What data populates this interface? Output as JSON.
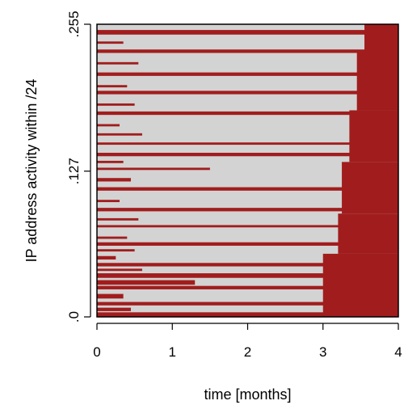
{
  "chart_data": {
    "type": "heatmap",
    "title": "",
    "xlabel": "time [months]",
    "ylabel": "IP address activity within /24",
    "xlim": [
      0,
      4
    ],
    "ylim": [
      0,
      255
    ],
    "x_ticks": [
      {
        "value": 0,
        "label": "0"
      },
      {
        "value": 1,
        "label": "1"
      },
      {
        "value": 2,
        "label": "2"
      },
      {
        "value": 3,
        "label": "3"
      },
      {
        "value": 4,
        "label": "4"
      }
    ],
    "y_ticks": [
      {
        "value": 0,
        "label": ".0"
      },
      {
        "value": 127,
        "label": ".127"
      },
      {
        "value": 255,
        "label": ".255"
      }
    ],
    "colors": {
      "active": "#a11d1d",
      "inactive": "#d3d3d3",
      "frame": "#000000"
    },
    "grid": false,
    "legend": "none",
    "series": [
      {
        "values": [
          {
            "ip_start": 0,
            "ip_end": 4,
            "time_start": 0.0,
            "time_end": 4.0
          },
          {
            "ip_start": 10,
            "ip_end": 13,
            "time_start": 0.0,
            "time_end": 4.0
          },
          {
            "ip_start": 24,
            "ip_end": 27,
            "time_start": 0.0,
            "time_end": 4.0
          },
          {
            "ip_start": 34,
            "ip_end": 38,
            "time_start": 0.0,
            "time_end": 4.0
          },
          {
            "ip_start": 44,
            "ip_end": 47,
            "time_start": 0.0,
            "time_end": 4.0
          },
          {
            "ip_start": 62,
            "ip_end": 65,
            "time_start": 0.0,
            "time_end": 4.0
          },
          {
            "ip_start": 78,
            "ip_end": 80,
            "time_start": 0.0,
            "time_end": 4.0
          },
          {
            "ip_start": 92,
            "ip_end": 95,
            "time_start": 0.0,
            "time_end": 4.0
          },
          {
            "ip_start": 110,
            "ip_end": 113,
            "time_start": 0.0,
            "time_end": 4.0
          },
          {
            "ip_start": 140,
            "ip_end": 143,
            "time_start": 0.0,
            "time_end": 4.0
          },
          {
            "ip_start": 150,
            "ip_end": 152,
            "time_start": 0.0,
            "time_end": 4.0
          },
          {
            "ip_start": 176,
            "ip_end": 179,
            "time_start": 0.0,
            "time_end": 4.0
          },
          {
            "ip_start": 194,
            "ip_end": 197,
            "time_start": 0.0,
            "time_end": 4.0
          },
          {
            "ip_start": 210,
            "ip_end": 213,
            "time_start": 0.0,
            "time_end": 4.0
          },
          {
            "ip_start": 230,
            "ip_end": 233,
            "time_start": 0.0,
            "time_end": 4.0
          },
          {
            "ip_start": 246,
            "ip_end": 250,
            "time_start": 0.0,
            "time_end": 4.0
          },
          {
            "ip_start": 5,
            "ip_end": 8,
            "time_start": 0.0,
            "time_end": 0.45
          },
          {
            "ip_start": 16,
            "ip_end": 20,
            "time_start": 0.0,
            "time_end": 0.35
          },
          {
            "ip_start": 28,
            "ip_end": 32,
            "time_start": 0.0,
            "time_end": 1.3
          },
          {
            "ip_start": 40,
            "ip_end": 42,
            "time_start": 0.0,
            "time_end": 0.6
          },
          {
            "ip_start": 50,
            "ip_end": 53,
            "time_start": 0.0,
            "time_end": 0.25
          },
          {
            "ip_start": 57,
            "ip_end": 59,
            "time_start": 0.0,
            "time_end": 0.5
          },
          {
            "ip_start": 68,
            "ip_end": 70,
            "time_start": 0.0,
            "time_end": 0.4
          },
          {
            "ip_start": 84,
            "ip_end": 86,
            "time_start": 0.0,
            "time_end": 0.55
          },
          {
            "ip_start": 100,
            "ip_end": 102,
            "time_start": 0.0,
            "time_end": 0.3
          },
          {
            "ip_start": 118,
            "ip_end": 121,
            "time_start": 0.0,
            "time_end": 0.45
          },
          {
            "ip_start": 128,
            "ip_end": 130,
            "time_start": 0.0,
            "time_end": 1.5
          },
          {
            "ip_start": 134,
            "ip_end": 136,
            "time_start": 0.0,
            "time_end": 0.35
          },
          {
            "ip_start": 158,
            "ip_end": 160,
            "time_start": 0.0,
            "time_end": 0.6
          },
          {
            "ip_start": 166,
            "ip_end": 168,
            "time_start": 0.0,
            "time_end": 0.3
          },
          {
            "ip_start": 184,
            "ip_end": 186,
            "time_start": 0.0,
            "time_end": 0.5
          },
          {
            "ip_start": 200,
            "ip_end": 202,
            "time_start": 0.0,
            "time_end": 0.4
          },
          {
            "ip_start": 220,
            "ip_end": 222,
            "time_start": 0.0,
            "time_end": 0.55
          },
          {
            "ip_start": 238,
            "ip_end": 240,
            "time_start": 0.0,
            "time_end": 0.35
          },
          {
            "ip_start": 0,
            "ip_end": 55,
            "time_start": 3.0,
            "time_end": 4.0
          },
          {
            "ip_start": 55,
            "ip_end": 90,
            "time_start": 3.2,
            "time_end": 4.0
          },
          {
            "ip_start": 90,
            "ip_end": 135,
            "time_start": 3.25,
            "time_end": 4.0
          },
          {
            "ip_start": 135,
            "ip_end": 180,
            "time_start": 3.35,
            "time_end": 4.0
          },
          {
            "ip_start": 180,
            "ip_end": 230,
            "time_start": 3.45,
            "time_end": 4.0
          },
          {
            "ip_start": 230,
            "ip_end": 255,
            "time_start": 3.55,
            "time_end": 4.0
          }
        ]
      }
    ]
  }
}
